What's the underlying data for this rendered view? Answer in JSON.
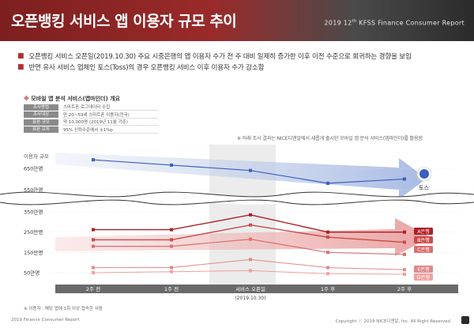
{
  "header": {
    "title": "오픈뱅킹 서비스 앱 이용자 규모 추이",
    "subtitle_prefix": "2019 12",
    "subtitle_sup": "th",
    "subtitle_rest": " KFSS   Finance Consumer Report"
  },
  "bullets": [
    "오픈뱅킹 서비스 오픈일(2019.10.30) 주요 시중은행의 앱 이용자 수가 전 주 대비 일제히 증가한 이후 이전 수준으로 회귀하는 경향을 보임",
    "반면 유사 서비스 업체인 토스(Toss)의 경우 오픈뱅킹 서비스 이후 이용자 수가 감소함"
  ],
  "survey": {
    "title_marker": "※",
    "title": " 모바일 앱 분석 서비스(앱마인더) 개요",
    "rows": [
      {
        "key": "조사방법",
        "value": "스마트폰 로그데이터 수집"
      },
      {
        "key": "조사대상",
        "value": "만 20~59세 스마트폰 이용자(전국)"
      },
      {
        "key": "표본 규모",
        "value": "약 10,000명 (2019년 11월 기준)"
      },
      {
        "key": "표본 오차",
        "value": "95% 신뢰수준에서 ±1%p"
      }
    ]
  },
  "note_top": "※ 아래 조사 결과는 NICE디앤알에서 새롭게 출시한 모바일 앱 분석 서비스(앱마인더)를 활용함",
  "chart_note": "※ 이용자 : 해당 앱에 1회 이상 접속한 사람",
  "footer": {
    "left": "2019 Finance Consumer Report",
    "right": "Copyright ⓒ 2019 NICE디앤알, Inc. All Right Reserved"
  },
  "colors": {
    "toss": "#3a5fbf",
    "bank_a": "#b01e24",
    "bank_b": "#c94a4a",
    "bank_c": "#d96f6f",
    "bank_d": "#f0a0a0",
    "bank_e": "#e08888"
  },
  "chart_data": {
    "type": "line",
    "ylabel": "이용자 규모",
    "y_ticks": [
      "650만명",
      "550만명",
      "350만명",
      "250만명",
      "150만명",
      "50만명"
    ],
    "categories": [
      "2주 전",
      "1주 전",
      "서비스 오픈일",
      "1주 후",
      "2주 후"
    ],
    "highlight_category": "서비스 오픈일",
    "highlight_sublabel": "(2019.10.30)",
    "axis_break": true,
    "series": [
      {
        "name": "토스",
        "values": [
          690,
          665,
          640,
          580,
          600
        ],
        "icon": "toss-logo-icon"
      },
      {
        "name": "A은행",
        "values": [
          262,
          262,
          335,
          250,
          250
        ]
      },
      {
        "name": "B은행",
        "values": [
          212,
          212,
          285,
          225,
          200
        ]
      },
      {
        "name": "C은행",
        "values": [
          180,
          180,
          215,
          150,
          140
        ]
      },
      {
        "name": "E은행",
        "values": [
          75,
          75,
          115,
          75,
          65
        ]
      },
      {
        "name": "D은행",
        "values": [
          50,
          55,
          60,
          45,
          42
        ]
      }
    ]
  }
}
